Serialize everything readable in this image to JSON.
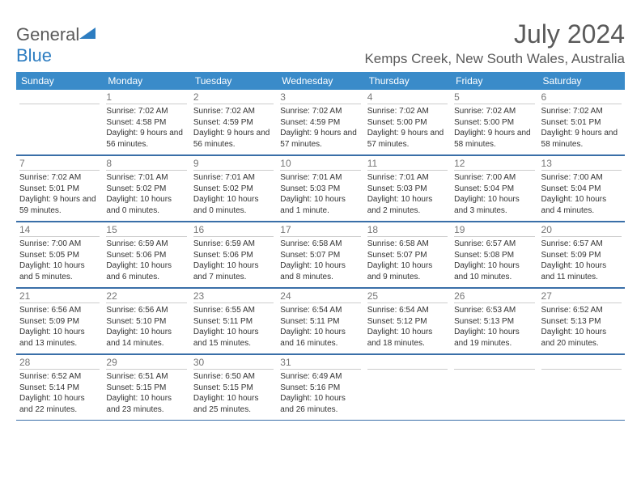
{
  "brand": {
    "name_a": "General",
    "name_b": "Blue"
  },
  "title": "July 2024",
  "location": "Kemps Creek, New South Wales, Australia",
  "colors": {
    "header_bg": "#3a8bc9",
    "grid_line": "#3a6fa8",
    "text_gray": "#5a5a5a",
    "cell_divider": "#cccccc"
  },
  "dow": [
    "Sunday",
    "Monday",
    "Tuesday",
    "Wednesday",
    "Thursday",
    "Friday",
    "Saturday"
  ],
  "weeks": [
    [
      {
        "n": "",
        "empty": true
      },
      {
        "n": "1",
        "sr": "7:02 AM",
        "ss": "4:58 PM",
        "dl": "9 hours and 56 minutes."
      },
      {
        "n": "2",
        "sr": "7:02 AM",
        "ss": "4:59 PM",
        "dl": "9 hours and 56 minutes."
      },
      {
        "n": "3",
        "sr": "7:02 AM",
        "ss": "4:59 PM",
        "dl": "9 hours and 57 minutes."
      },
      {
        "n": "4",
        "sr": "7:02 AM",
        "ss": "5:00 PM",
        "dl": "9 hours and 57 minutes."
      },
      {
        "n": "5",
        "sr": "7:02 AM",
        "ss": "5:00 PM",
        "dl": "9 hours and 58 minutes."
      },
      {
        "n": "6",
        "sr": "7:02 AM",
        "ss": "5:01 PM",
        "dl": "9 hours and 58 minutes."
      }
    ],
    [
      {
        "n": "7",
        "sr": "7:02 AM",
        "ss": "5:01 PM",
        "dl": "9 hours and 59 minutes."
      },
      {
        "n": "8",
        "sr": "7:01 AM",
        "ss": "5:02 PM",
        "dl": "10 hours and 0 minutes."
      },
      {
        "n": "9",
        "sr": "7:01 AM",
        "ss": "5:02 PM",
        "dl": "10 hours and 0 minutes."
      },
      {
        "n": "10",
        "sr": "7:01 AM",
        "ss": "5:03 PM",
        "dl": "10 hours and 1 minute."
      },
      {
        "n": "11",
        "sr": "7:01 AM",
        "ss": "5:03 PM",
        "dl": "10 hours and 2 minutes."
      },
      {
        "n": "12",
        "sr": "7:00 AM",
        "ss": "5:04 PM",
        "dl": "10 hours and 3 minutes."
      },
      {
        "n": "13",
        "sr": "7:00 AM",
        "ss": "5:04 PM",
        "dl": "10 hours and 4 minutes."
      }
    ],
    [
      {
        "n": "14",
        "sr": "7:00 AM",
        "ss": "5:05 PM",
        "dl": "10 hours and 5 minutes."
      },
      {
        "n": "15",
        "sr": "6:59 AM",
        "ss": "5:06 PM",
        "dl": "10 hours and 6 minutes."
      },
      {
        "n": "16",
        "sr": "6:59 AM",
        "ss": "5:06 PM",
        "dl": "10 hours and 7 minutes."
      },
      {
        "n": "17",
        "sr": "6:58 AM",
        "ss": "5:07 PM",
        "dl": "10 hours and 8 minutes."
      },
      {
        "n": "18",
        "sr": "6:58 AM",
        "ss": "5:07 PM",
        "dl": "10 hours and 9 minutes."
      },
      {
        "n": "19",
        "sr": "6:57 AM",
        "ss": "5:08 PM",
        "dl": "10 hours and 10 minutes."
      },
      {
        "n": "20",
        "sr": "6:57 AM",
        "ss": "5:09 PM",
        "dl": "10 hours and 11 minutes."
      }
    ],
    [
      {
        "n": "21",
        "sr": "6:56 AM",
        "ss": "5:09 PM",
        "dl": "10 hours and 13 minutes."
      },
      {
        "n": "22",
        "sr": "6:56 AM",
        "ss": "5:10 PM",
        "dl": "10 hours and 14 minutes."
      },
      {
        "n": "23",
        "sr": "6:55 AM",
        "ss": "5:11 PM",
        "dl": "10 hours and 15 minutes."
      },
      {
        "n": "24",
        "sr": "6:54 AM",
        "ss": "5:11 PM",
        "dl": "10 hours and 16 minutes."
      },
      {
        "n": "25",
        "sr": "6:54 AM",
        "ss": "5:12 PM",
        "dl": "10 hours and 18 minutes."
      },
      {
        "n": "26",
        "sr": "6:53 AM",
        "ss": "5:13 PM",
        "dl": "10 hours and 19 minutes."
      },
      {
        "n": "27",
        "sr": "6:52 AM",
        "ss": "5:13 PM",
        "dl": "10 hours and 20 minutes."
      }
    ],
    [
      {
        "n": "28",
        "sr": "6:52 AM",
        "ss": "5:14 PM",
        "dl": "10 hours and 22 minutes."
      },
      {
        "n": "29",
        "sr": "6:51 AM",
        "ss": "5:15 PM",
        "dl": "10 hours and 23 minutes."
      },
      {
        "n": "30",
        "sr": "6:50 AM",
        "ss": "5:15 PM",
        "dl": "10 hours and 25 minutes."
      },
      {
        "n": "31",
        "sr": "6:49 AM",
        "ss": "5:16 PM",
        "dl": "10 hours and 26 minutes."
      },
      {
        "n": "",
        "empty": true
      },
      {
        "n": "",
        "empty": true
      },
      {
        "n": "",
        "empty": true
      }
    ]
  ],
  "labels": {
    "sunrise": "Sunrise:",
    "sunset": "Sunset:",
    "daylight": "Daylight:"
  }
}
